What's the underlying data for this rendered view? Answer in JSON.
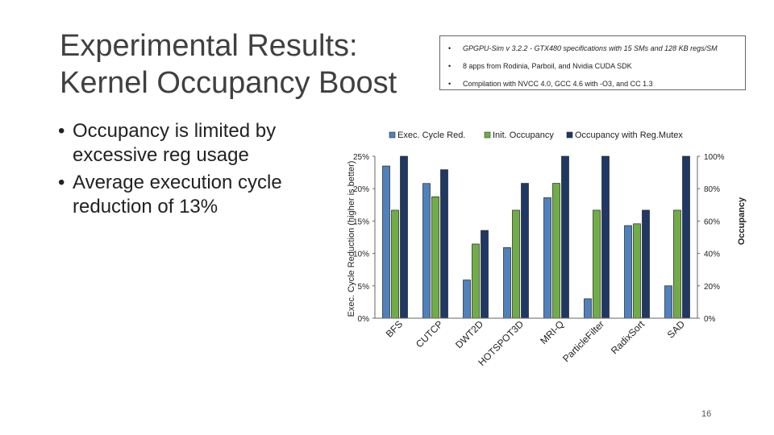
{
  "slide": {
    "title": "Experimental Results: Kernel Occupancy Boost",
    "page_number": "16"
  },
  "bullets": [
    "Occupancy is limited by excessive reg usage",
    "Average execution cycle reduction of 13%"
  ],
  "info_box": [
    "GPGPU-Sim v 3.2.2 - GTX480 specifications with 15 SMs and 128 KB regs/SM",
    "8 apps from Rodinia, Parboil, and Nvidia CUDA SDK",
    "Compilation with NVCC 4.0, GCC 4.6 with -O3, and CC 1.3"
  ],
  "chart_data": {
    "type": "bar",
    "categories": [
      "BFS",
      "CUTCP",
      "DWT2D",
      "HOTSPOT3D",
      "MRI-Q",
      "ParticleFilter",
      "RadixSort",
      "SAD"
    ],
    "series": [
      {
        "name": "Exec. Cycle Red.",
        "axis": "left",
        "color": "#4f81bd",
        "values": [
          23.5,
          20.8,
          5.9,
          10.9,
          18.6,
          3.0,
          14.3,
          5.0
        ]
      },
      {
        "name": "Init. Occupancy",
        "axis": "right",
        "color": "#70ad47",
        "values": [
          66.7,
          75,
          45.8,
          66.7,
          83.3,
          66.7,
          58.3,
          66.7
        ]
      },
      {
        "name": "Occupancy with Reg.Mutex",
        "axis": "right",
        "color": "#1f3864",
        "values": [
          100,
          91.7,
          54.2,
          83.3,
          100,
          100,
          66.7,
          100
        ]
      }
    ],
    "ylabel": "Exec. Cycle Reduction (higher is better)",
    "y2label": "Occupancy",
    "ylim": [
      0,
      25
    ],
    "y2lim": [
      0,
      100
    ],
    "yticks": [
      "0%",
      "5%",
      "10%",
      "15%",
      "20%",
      "25%"
    ],
    "y2ticks": [
      "0%",
      "20%",
      "40%",
      "60%",
      "80%",
      "100%"
    ],
    "legend_position": "top"
  }
}
